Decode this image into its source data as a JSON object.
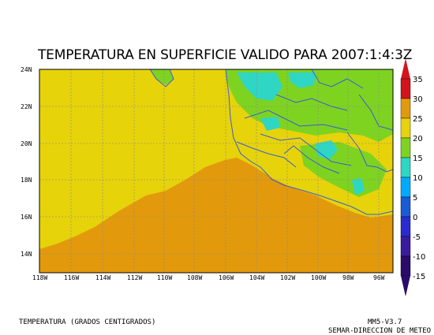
{
  "title": "TEMPERATURA EN SUPERFICIE VALIDO PARA 2007:1:4:3Z",
  "footer": {
    "variable": "TEMPERATURA (GRADOS CENTIGRADOS)",
    "model": "MM5-V3.7",
    "institution": "SEMAR-DIRECCION DE METEO"
  },
  "map": {
    "lat_labels": [
      "24N",
      "22N",
      "20N",
      "18N",
      "16N",
      "14N"
    ],
    "lon_labels": [
      "118W",
      "116W",
      "114W",
      "112W",
      "110W",
      "108W",
      "106W",
      "104W",
      "102W",
      "100W",
      "98W",
      "96W"
    ],
    "colors": {
      "ocean_warm": "#e29a0c",
      "land_mild": "#e6d30a",
      "cool": "#7ed321",
      "cold": "#2fd6c4",
      "coast": "#3b5bd8",
      "grid": "#888888"
    }
  },
  "colorbar": {
    "labels": [
      "35",
      "30",
      "25",
      "20",
      "15",
      "10",
      "5",
      "0",
      "-5",
      "-10",
      "-15"
    ],
    "colors": [
      "#d4141c",
      "#e29a0c",
      "#e6d30a",
      "#7ed321",
      "#2fd6c4",
      "#00aaff",
      "#1a5bd6",
      "#2a2ad0",
      "#3a1ba0",
      "#2a0a6a"
    ]
  }
}
